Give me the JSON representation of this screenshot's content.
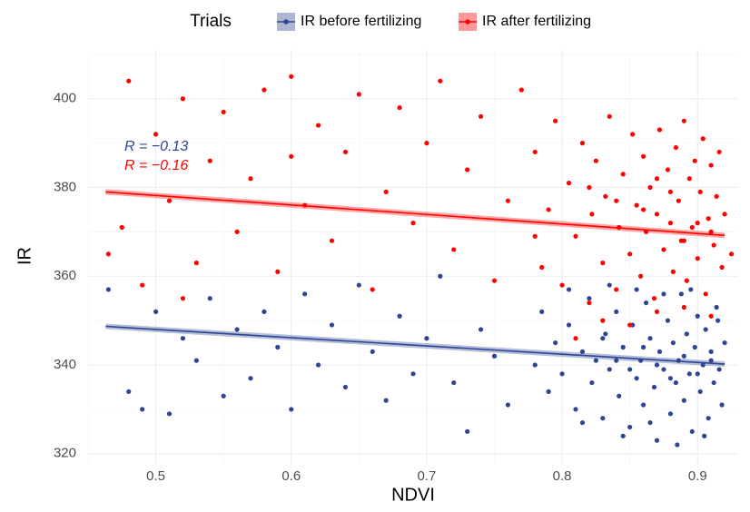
{
  "chart_data": {
    "type": "scatter",
    "legend_title": "Trials",
    "x_label": "NDVI",
    "y_label": "IR",
    "xlim": [
      0.45,
      0.93
    ],
    "ylim": [
      317.5,
      411
    ],
    "xticks": [
      0.5,
      0.6,
      0.7,
      0.8,
      0.9
    ],
    "yticks": [
      320,
      340,
      360,
      380,
      400
    ],
    "grid": true,
    "legend_position": "top",
    "annotations": [
      {
        "text": "R = −0.13",
        "color": "#2e4593"
      },
      {
        "text": "R = −0.16",
        "color": "#ff0000"
      }
    ],
    "series": [
      {
        "name": "IR before fertilizing",
        "color": "#2e4593",
        "x": [
          0.465,
          0.48,
          0.49,
          0.5,
          0.51,
          0.52,
          0.53,
          0.54,
          0.55,
          0.56,
          0.57,
          0.58,
          0.59,
          0.6,
          0.61,
          0.62,
          0.63,
          0.64,
          0.65,
          0.66,
          0.67,
          0.68,
          0.69,
          0.7,
          0.71,
          0.72,
          0.73,
          0.74,
          0.75,
          0.76,
          0.78,
          0.785,
          0.79,
          0.795,
          0.8,
          0.805,
          0.81,
          0.815,
          0.82,
          0.822,
          0.825,
          0.83,
          0.832,
          0.835,
          0.84,
          0.842,
          0.845,
          0.85,
          0.852,
          0.855,
          0.858,
          0.86,
          0.862,
          0.865,
          0.868,
          0.87,
          0.872,
          0.875,
          0.878,
          0.88,
          0.882,
          0.884,
          0.886,
          0.888,
          0.89,
          0.892,
          0.894,
          0.896,
          0.898,
          0.9,
          0.902,
          0.904,
          0.906,
          0.908,
          0.91,
          0.912,
          0.914,
          0.916,
          0.918,
          0.92,
          0.805,
          0.815,
          0.835,
          0.845,
          0.855,
          0.865,
          0.875,
          0.885,
          0.895,
          0.905,
          0.915,
          0.87,
          0.88,
          0.89,
          0.86,
          0.85,
          0.84,
          0.83,
          0.9,
          0.91
        ],
        "values": [
          357,
          334,
          330,
          352,
          329,
          346,
          341,
          355,
          333,
          348,
          337,
          352,
          344,
          330,
          356,
          340,
          349,
          335,
          358,
          343,
          332,
          351,
          338,
          346,
          360,
          336,
          325,
          348,
          342,
          331,
          340,
          352,
          334,
          345,
          338,
          349,
          330,
          343,
          355,
          336,
          341,
          328,
          347,
          339,
          352,
          333,
          344,
          326,
          349,
          337,
          341,
          331,
          354,
          346,
          335,
          323,
          343,
          339,
          350,
          329,
          345,
          336,
          341,
          356,
          332,
          347,
          338,
          325,
          344,
          351,
          334,
          340,
          348,
          328,
          343,
          336,
          353,
          339,
          331,
          345,
          357,
          327,
          358,
          324,
          357,
          327,
          356,
          322,
          357,
          324,
          350,
          340,
          337,
          342,
          344,
          339,
          341,
          346,
          338,
          341
        ],
        "trend": {
          "x": [
            0.463,
            0.92
          ],
          "y": [
            348.7,
            340.2
          ]
        }
      },
      {
        "name": "IR after fertilizing",
        "color": "#ff0000",
        "x": [
          0.465,
          0.475,
          0.48,
          0.49,
          0.5,
          0.51,
          0.52,
          0.53,
          0.54,
          0.55,
          0.56,
          0.57,
          0.58,
          0.59,
          0.6,
          0.61,
          0.62,
          0.63,
          0.64,
          0.65,
          0.66,
          0.67,
          0.68,
          0.69,
          0.7,
          0.71,
          0.72,
          0.73,
          0.74,
          0.75,
          0.76,
          0.77,
          0.78,
          0.52,
          0.6,
          0.78,
          0.785,
          0.79,
          0.795,
          0.8,
          0.805,
          0.81,
          0.815,
          0.82,
          0.822,
          0.825,
          0.83,
          0.832,
          0.835,
          0.84,
          0.842,
          0.845,
          0.85,
          0.852,
          0.855,
          0.858,
          0.86,
          0.862,
          0.865,
          0.868,
          0.87,
          0.872,
          0.875,
          0.878,
          0.88,
          0.882,
          0.884,
          0.886,
          0.888,
          0.89,
          0.892,
          0.894,
          0.896,
          0.898,
          0.9,
          0.902,
          0.904,
          0.906,
          0.908,
          0.91,
          0.912,
          0.914,
          0.916,
          0.918,
          0.92,
          0.925,
          0.81,
          0.83,
          0.85,
          0.87,
          0.89,
          0.91,
          0.86,
          0.88,
          0.9,
          0.84,
          0.87,
          0.89,
          0.91,
          0.82
        ],
        "values": [
          365,
          371,
          404,
          358,
          392,
          377,
          400,
          363,
          386,
          397,
          370,
          382,
          402,
          361,
          405,
          376,
          394,
          368,
          388,
          401,
          357,
          379,
          398,
          372,
          390,
          404,
          366,
          384,
          396,
          359,
          377,
          402,
          369,
          355,
          387,
          388,
          362,
          375,
          395,
          358,
          381,
          369,
          390,
          354,
          374,
          386,
          363,
          378,
          396,
          357,
          371,
          383,
          365,
          392,
          376,
          360,
          387,
          370,
          380,
          355,
          374,
          393,
          366,
          384,
          372,
          361,
          389,
          377,
          368,
          395,
          359,
          382,
          371,
          386,
          364,
          379,
          391,
          356,
          373,
          385,
          367,
          378,
          388,
          362,
          374,
          365,
          346,
          350,
          349,
          352,
          353,
          351,
          375,
          379,
          372,
          377,
          382,
          368,
          370,
          380
        ],
        "trend": {
          "x": [
            0.463,
            0.92
          ],
          "y": [
            379,
            369.2
          ]
        }
      }
    ]
  }
}
